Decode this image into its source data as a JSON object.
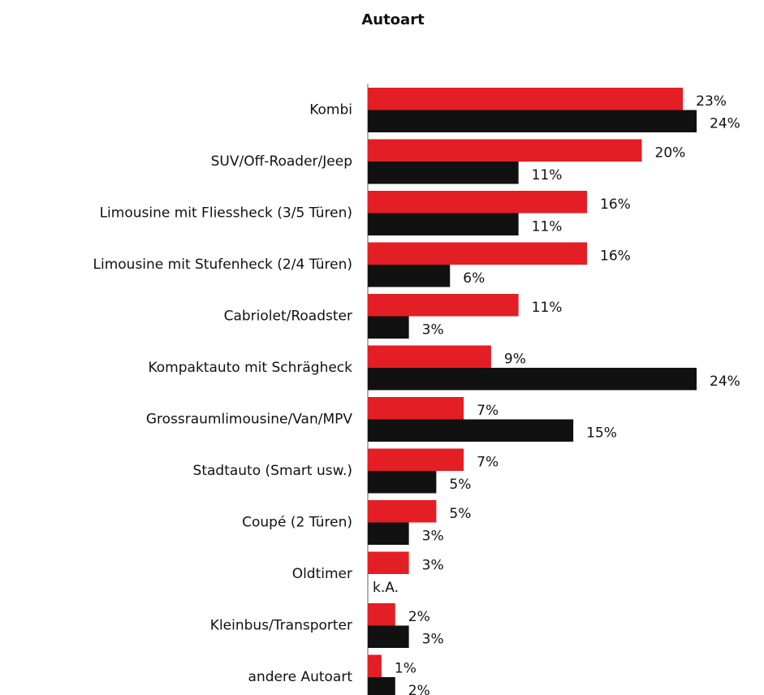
{
  "chart_data": {
    "type": "bar",
    "orientation": "horizontal",
    "title": "Autoart",
    "categories": [
      "Kombi",
      "SUV/Off-Roader/Jeep",
      "Limousine mit Fliessheck (3/5 Türen)",
      "Limousine mit Stufenheck (2/4 Türen)",
      "Cabriolet/Roadster",
      "Kompaktauto mit Schrägheck",
      "Grossraumlimousine/Van/MPV",
      "Stadtauto (Smart usw.)",
      "Coupé (2 Türen)",
      "Oldtimer",
      "Kleinbus/Transporter",
      "andere Autoart"
    ],
    "series": [
      {
        "color": "#e31e24",
        "values": [
          23,
          20,
          16,
          16,
          11,
          9,
          7,
          7,
          5,
          3,
          2,
          1
        ],
        "value_labels": [
          "23%",
          "20%",
          "16%",
          "16%",
          "11%",
          "9%",
          "7%",
          "7%",
          "5%",
          "3%",
          "2%",
          "1%"
        ]
      },
      {
        "color": "#111111",
        "values": [
          24,
          11,
          11,
          6,
          3,
          24,
          15,
          5,
          3,
          null,
          3,
          2
        ],
        "value_labels": [
          "24%",
          "11%",
          "11%",
          "6%",
          "3%",
          "24%",
          "15%",
          "5%",
          "3%",
          "k.A.",
          "3%",
          "2%"
        ]
      }
    ]
  }
}
